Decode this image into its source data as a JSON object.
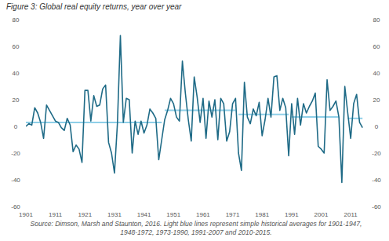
{
  "chart_data": {
    "type": "line",
    "title": "Figure 3: Global real equity returns, year over year",
    "source": "Source: Dimson, Marsh and Staunton, 2016. Light blue lines represent simple historical averages for 1901-1947, 1948-1972, 1973-1990, 1991-2007 and 2010-2015.",
    "x": [
      1901,
      1902,
      1903,
      1904,
      1905,
      1906,
      1907,
      1908,
      1909,
      1910,
      1911,
      1912,
      1913,
      1914,
      1915,
      1916,
      1917,
      1918,
      1919,
      1920,
      1921,
      1922,
      1923,
      1924,
      1925,
      1926,
      1927,
      1928,
      1929,
      1930,
      1931,
      1932,
      1933,
      1934,
      1935,
      1936,
      1937,
      1938,
      1939,
      1940,
      1941,
      1942,
      1943,
      1944,
      1945,
      1946,
      1947,
      1948,
      1949,
      1950,
      1951,
      1952,
      1953,
      1954,
      1955,
      1956,
      1957,
      1958,
      1959,
      1960,
      1961,
      1962,
      1963,
      1964,
      1965,
      1966,
      1967,
      1968,
      1969,
      1970,
      1971,
      1972,
      1973,
      1974,
      1975,
      1976,
      1977,
      1978,
      1979,
      1980,
      1981,
      1982,
      1983,
      1984,
      1985,
      1986,
      1987,
      1988,
      1989,
      1990,
      1991,
      1992,
      1993,
      1994,
      1995,
      1996,
      1997,
      1998,
      1999,
      2000,
      2001,
      2002,
      2003,
      2004,
      2005,
      2006,
      2007,
      2008,
      2009,
      2010,
      2011,
      2012,
      2013,
      2014,
      2015
    ],
    "series": [
      {
        "name": "Global real equity returns",
        "color": "#1e6a86",
        "values": [
          0,
          2,
          1,
          14,
          10,
          3,
          -9,
          16,
          12,
          8,
          4,
          3,
          -1,
          -3,
          6,
          1,
          -19,
          -14,
          -17,
          -27,
          27,
          27,
          4,
          23,
          15,
          16,
          28,
          31,
          -12,
          -20,
          -35,
          2,
          68,
          3,
          21,
          20,
          -20,
          4,
          -6,
          4,
          -5,
          1,
          13,
          10,
          6,
          -25,
          -10,
          5,
          12,
          21,
          17,
          7,
          4,
          49,
          25,
          5,
          -11,
          37,
          22,
          3,
          21,
          -9,
          19,
          7,
          20,
          -10,
          21,
          17,
          -11,
          -4,
          17,
          21,
          -20,
          -33,
          33,
          7,
          2,
          13,
          8,
          18,
          -7,
          5,
          21,
          7,
          37,
          38,
          12,
          21,
          14,
          -22,
          17,
          -6,
          21,
          1,
          17,
          10,
          15,
          19,
          25,
          -15,
          -17,
          -20,
          35,
          12,
          15,
          19,
          7,
          -42,
          30,
          10,
          -9,
          17,
          24,
          3,
          -1
        ]
      }
    ],
    "averages": {
      "x0": [
        1901,
        1948,
        1973,
        1991,
        2010
      ],
      "x1": [
        1947,
        1972,
        1990,
        2007,
        2015
      ],
      "values": [
        3,
        12,
        9,
        7,
        6
      ],
      "color": "#8fcfe8"
    },
    "xlim": [
      1901,
      2016
    ],
    "xticks": [
      1901,
      1911,
      1921,
      1931,
      1941,
      1951,
      1961,
      1971,
      1981,
      1991,
      2001,
      2011
    ],
    "ylim": [
      -60,
      80
    ],
    "yticks": [
      -60,
      -40,
      -20,
      0,
      20,
      40,
      60,
      80
    ],
    "y2lim": [
      -60,
      80
    ],
    "y2ticks": [
      -60,
      -40,
      -20,
      0,
      20,
      40,
      60,
      80
    ],
    "grid": false
  }
}
